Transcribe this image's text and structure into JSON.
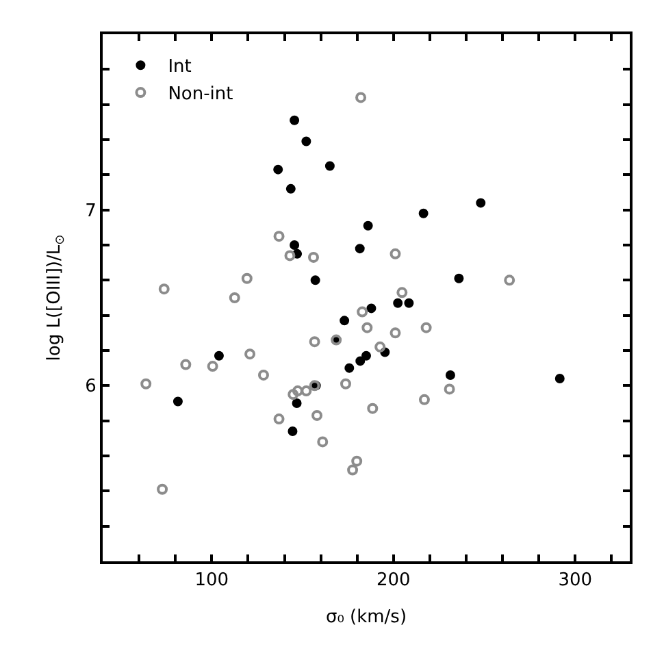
{
  "chart_data": {
    "type": "scatter",
    "xlabel": "σ₀ (km/s)",
    "ylabel": "log L([OIII])/L$_{⊙}$",
    "xlim": [
      40,
      330
    ],
    "ylim": [
      5,
      8
    ],
    "xticks": [
      {
        "value": 40,
        "label": null
      },
      {
        "value": 60,
        "label": null
      },
      {
        "value": 80,
        "label": null
      },
      100,
      {
        "value": 120,
        "label": null
      },
      {
        "value": 140,
        "label": null
      },
      {
        "value": 160,
        "label": null
      },
      {
        "value": 180,
        "label": null
      },
      200,
      {
        "value": 220,
        "label": null
      },
      {
        "value": 240,
        "label": null
      },
      {
        "value": 260,
        "label": null
      },
      {
        "value": 280,
        "label": null
      },
      300,
      {
        "value": 320,
        "label": null
      }
    ],
    "yticks": [
      {
        "value": 5.2,
        "label": null
      },
      {
        "value": 5.4,
        "label": null
      },
      {
        "value": 5.6,
        "label": null
      },
      {
        "value": 5.8,
        "label": null
      },
      6,
      {
        "value": 6.2,
        "label": null
      },
      {
        "value": 6.4,
        "label": null
      },
      {
        "value": 6.6,
        "label": null
      },
      {
        "value": 6.8,
        "label": null
      },
      7,
      {
        "value": 7.2,
        "label": null
      },
      {
        "value": 7.4,
        "label": null
      },
      {
        "value": 7.6,
        "label": null
      },
      {
        "value": 7.8,
        "label": null
      }
    ],
    "legend": "top left",
    "marker": "circle",
    "series": [
      {
        "name": "Int",
        "color": "#000000",
        "x": [
          145.5,
          152,
          165,
          136.5,
          143.5,
          145.5,
          147,
          157,
          181.5,
          186,
          216.5,
          248,
          236,
          104,
          81.4,
          146.8,
          144.5,
          157.4,
          168.5,
          173,
          175.7,
          181.7,
          185,
          187.8,
          202.4,
          208.5,
          195.3,
          231.3,
          291.5
        ],
        "values": [
          7.51,
          7.39,
          7.25,
          7.23,
          7.12,
          6.8,
          6.75,
          6.6,
          6.78,
          6.91,
          6.98,
          7.04,
          6.61,
          6.17,
          5.91,
          5.9,
          5.74,
          6.0,
          6.26,
          6.37,
          6.1,
          6.14,
          6.17,
          6.44,
          6.47,
          6.47,
          6.19,
          6.06,
          6.04
        ]
      },
      {
        "name": "Non-int",
        "color": "#8c8c8c",
        "x": [
          182,
          137,
          143,
          156,
          119.4,
          73.8,
          112.6,
          201,
          204.7,
          263.8,
          63.8,
          85.7,
          100.5,
          121,
          128.5,
          72.8,
          137,
          157.9,
          161,
          177.5,
          179.8,
          144.8,
          147.3,
          152,
          156.6,
          173.7,
          156.6,
          168.5,
          182.8,
          185.5,
          201,
          218,
          192.6,
          230.8,
          217,
          188.5
        ],
        "values": [
          7.64,
          6.85,
          6.74,
          6.73,
          6.61,
          6.55,
          6.5,
          6.75,
          6.53,
          6.6,
          6.01,
          6.12,
          6.11,
          6.18,
          6.06,
          5.41,
          5.81,
          5.83,
          5.68,
          5.52,
          5.57,
          5.95,
          5.97,
          5.97,
          6.0,
          6.01,
          6.25,
          6.26,
          6.42,
          6.33,
          6.3,
          6.33,
          6.22,
          5.98,
          5.92,
          5.87
        ]
      }
    ]
  }
}
